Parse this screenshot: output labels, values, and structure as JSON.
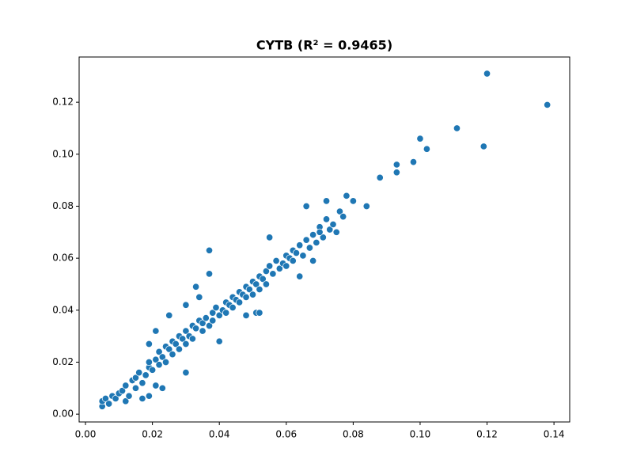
{
  "chart_data": {
    "type": "scatter",
    "title": "CYTB (R² = 0.9465)",
    "color": "#1f77b4",
    "x": [
      0.005,
      0.005,
      0.006,
      0.007,
      0.008,
      0.009,
      0.01,
      0.011,
      0.012,
      0.012,
      0.013,
      0.014,
      0.015,
      0.015,
      0.016,
      0.017,
      0.017,
      0.018,
      0.019,
      0.019,
      0.02,
      0.021,
      0.022,
      0.022,
      0.023,
      0.024,
      0.024,
      0.025,
      0.026,
      0.026,
      0.027,
      0.028,
      0.028,
      0.029,
      0.03,
      0.03,
      0.031,
      0.032,
      0.032,
      0.033,
      0.034,
      0.035,
      0.035,
      0.036,
      0.037,
      0.038,
      0.038,
      0.039,
      0.04,
      0.041,
      0.042,
      0.042,
      0.043,
      0.044,
      0.044,
      0.045,
      0.046,
      0.046,
      0.047,
      0.048,
      0.048,
      0.049,
      0.05,
      0.05,
      0.051,
      0.052,
      0.052,
      0.053,
      0.054,
      0.054,
      0.055,
      0.056,
      0.057,
      0.058,
      0.059,
      0.06,
      0.06,
      0.061,
      0.062,
      0.062,
      0.063,
      0.064,
      0.065,
      0.066,
      0.067,
      0.068,
      0.069,
      0.07,
      0.071,
      0.072,
      0.073,
      0.074,
      0.075,
      0.076,
      0.077,
      0.12,
      0.138,
      0.111,
      0.119,
      0.1,
      0.102,
      0.098,
      0.093,
      0.093,
      0.088,
      0.084,
      0.08,
      0.078,
      0.072,
      0.066,
      0.037,
      0.037,
      0.033,
      0.034,
      0.03,
      0.025,
      0.021,
      0.019,
      0.04,
      0.03,
      0.023,
      0.021,
      0.019,
      0.051,
      0.052,
      0.048,
      0.064,
      0.068,
      0.07,
      0.055
    ],
    "values": [
      0.003,
      0.005,
      0.006,
      0.004,
      0.007,
      0.006,
      0.008,
      0.009,
      0.005,
      0.011,
      0.007,
      0.013,
      0.01,
      0.014,
      0.016,
      0.006,
      0.012,
      0.015,
      0.018,
      0.02,
      0.017,
      0.021,
      0.019,
      0.024,
      0.022,
      0.026,
      0.02,
      0.025,
      0.028,
      0.023,
      0.027,
      0.03,
      0.025,
      0.029,
      0.032,
      0.027,
      0.03,
      0.034,
      0.029,
      0.033,
      0.036,
      0.032,
      0.035,
      0.037,
      0.034,
      0.039,
      0.036,
      0.041,
      0.038,
      0.04,
      0.043,
      0.039,
      0.042,
      0.045,
      0.041,
      0.044,
      0.047,
      0.043,
      0.046,
      0.049,
      0.045,
      0.048,
      0.051,
      0.046,
      0.05,
      0.053,
      0.048,
      0.052,
      0.055,
      0.05,
      0.057,
      0.054,
      0.059,
      0.056,
      0.058,
      0.061,
      0.057,
      0.06,
      0.063,
      0.059,
      0.062,
      0.065,
      0.061,
      0.067,
      0.064,
      0.069,
      0.066,
      0.072,
      0.068,
      0.075,
      0.071,
      0.073,
      0.07,
      0.078,
      0.076,
      0.131,
      0.119,
      0.11,
      0.103,
      0.106,
      0.102,
      0.097,
      0.096,
      0.093,
      0.091,
      0.08,
      0.082,
      0.084,
      0.082,
      0.08,
      0.063,
      0.054,
      0.049,
      0.045,
      0.042,
      0.038,
      0.032,
      0.027,
      0.028,
      0.016,
      0.01,
      0.011,
      0.007,
      0.039,
      0.039,
      0.038,
      0.053,
      0.059,
      0.07,
      0.068
    ],
    "xlim": [
      -0.0019,
      0.1447
    ],
    "ylim": [
      -0.003,
      0.1374
    ],
    "xticks": [
      {
        "value": 0,
        "label": "0.00"
      },
      {
        "value": 0.02,
        "label": "0.02"
      },
      {
        "value": 0.04,
        "label": "0.04"
      },
      {
        "value": 0.06,
        "label": "0.06"
      },
      {
        "value": 0.08,
        "label": "0.08"
      },
      {
        "value": 0.1,
        "label": "0.10"
      },
      {
        "value": 0.12,
        "label": "0.12"
      },
      {
        "value": 0.14,
        "label": "0.14"
      }
    ],
    "yticks": [
      {
        "value": 0,
        "label": "0.00"
      },
      {
        "value": 0.02,
        "label": "0.02"
      },
      {
        "value": 0.04,
        "label": "0.04"
      },
      {
        "value": 0.06,
        "label": "0.06"
      },
      {
        "value": 0.08,
        "label": "0.08"
      },
      {
        "value": 0.1,
        "label": "0.10"
      },
      {
        "value": 0.12,
        "label": "0.12"
      }
    ]
  }
}
